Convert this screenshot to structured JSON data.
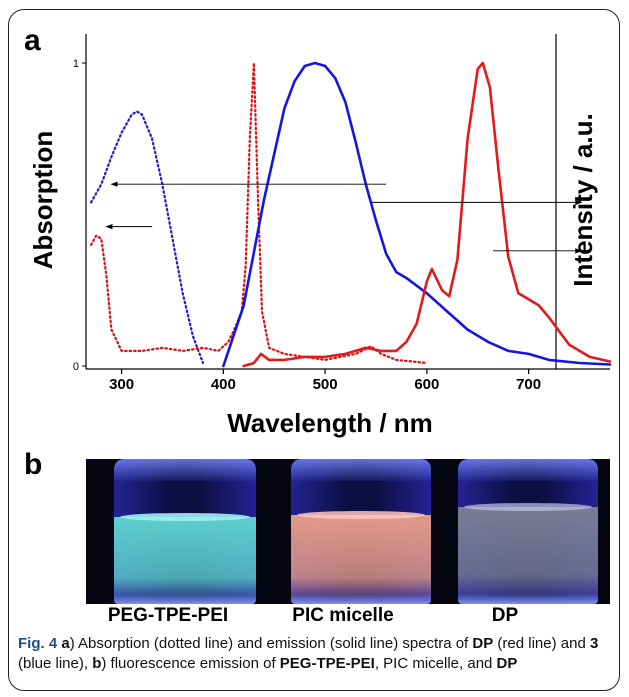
{
  "figure": {
    "panel_a_label": "a",
    "panel_b_label": "b",
    "caption": {
      "fig_no": "Fig. 4",
      "p1": " a",
      "p2": ") Absorption (dotted line) and emission (solid line) spectra of ",
      "p3": "DP",
      "p4": " (red line) and ",
      "p5": "3",
      "p6": " (blue line), ",
      "p7": "b",
      "p8": ") fluorescence emission of ",
      "p9": "PEG-TPE-PEI",
      "p10": ", PIC micelle, and ",
      "p11": "DP"
    }
  },
  "chart_data": {
    "type": "line",
    "title": "",
    "xlabel": "Wavelength / nm",
    "ylabel": "Absorption",
    "ylabel_right": "Intensity / a.u.",
    "xlim": [
      265,
      780
    ],
    "ylim": [
      0,
      1.1
    ],
    "xticks": [
      300,
      400,
      500,
      600,
      700
    ],
    "xtick_labels": [
      "300",
      "400",
      "500",
      "600",
      "700"
    ],
    "yticks": [
      0,
      1
    ],
    "ytick_labels": [
      "0",
      "1"
    ],
    "grid": false,
    "legend": "none",
    "series": [
      {
        "style": "dotted",
        "color": "#1f1fd0",
        "x": [
          270,
          280,
          290,
          300,
          310,
          315,
          320,
          330,
          340,
          350,
          360,
          370,
          380
        ],
        "y": [
          0.54,
          0.6,
          0.69,
          0.77,
          0.83,
          0.84,
          0.83,
          0.75,
          0.6,
          0.42,
          0.24,
          0.1,
          0.01
        ]
      },
      {
        "style": "dotted",
        "color": "#e01010",
        "x": [
          270,
          275,
          280,
          285,
          290,
          300,
          320,
          340,
          360,
          380,
          395,
          405,
          412,
          418,
          422,
          426,
          430,
          434,
          438,
          445,
          460,
          500,
          530,
          545,
          555,
          570,
          600
        ],
        "y": [
          0.4,
          0.43,
          0.42,
          0.3,
          0.12,
          0.05,
          0.05,
          0.06,
          0.05,
          0.06,
          0.05,
          0.08,
          0.13,
          0.18,
          0.33,
          0.75,
          1.0,
          0.55,
          0.18,
          0.06,
          0.04,
          0.02,
          0.04,
          0.065,
          0.04,
          0.02,
          0.01
        ]
      },
      {
        "style": "solid",
        "color": "#1515e0",
        "x": [
          400,
          420,
          440,
          460,
          470,
          480,
          490,
          500,
          510,
          520,
          530,
          540,
          550,
          560,
          570,
          580,
          600,
          620,
          640,
          660,
          680,
          700,
          720,
          750,
          780
        ],
        "y": [
          0.0,
          0.2,
          0.55,
          0.85,
          0.94,
          0.99,
          1.0,
          0.99,
          0.95,
          0.87,
          0.74,
          0.6,
          0.48,
          0.37,
          0.31,
          0.29,
          0.24,
          0.18,
          0.12,
          0.08,
          0.05,
          0.04,
          0.02,
          0.01,
          0.005
        ]
      },
      {
        "style": "solid",
        "color": "#e21a1a",
        "x": [
          420,
          430,
          437,
          445,
          460,
          480,
          500,
          520,
          540,
          555,
          570,
          580,
          590,
          600,
          605,
          615,
          622,
          630,
          640,
          650,
          655,
          662,
          670,
          680,
          690,
          700,
          710,
          720,
          740,
          760,
          780
        ],
        "y": [
          0.0,
          0.01,
          0.04,
          0.02,
          0.02,
          0.03,
          0.03,
          0.04,
          0.06,
          0.05,
          0.05,
          0.08,
          0.14,
          0.28,
          0.32,
          0.25,
          0.23,
          0.35,
          0.75,
          0.98,
          1.0,
          0.92,
          0.66,
          0.36,
          0.24,
          0.22,
          0.2,
          0.16,
          0.07,
          0.03,
          0.015
        ]
      }
    ],
    "annotations": [
      {
        "type": "arrow",
        "x_from": 560,
        "x_to": 290,
        "y": 0.6
      },
      {
        "type": "arrow",
        "x_from": 330,
        "x_to": 285,
        "y": 0.46
      },
      {
        "type": "arrow",
        "x_from": 545,
        "x_to": 752,
        "y": 0.54
      },
      {
        "type": "arrow",
        "x_from": 665,
        "x_to": 752,
        "y": 0.38
      }
    ]
  },
  "photo": {
    "samples": [
      {
        "label": "PEG-TPE-PEI",
        "liquid_color": "#5ecfcf"
      },
      {
        "label": "PIC micelle",
        "liquid_color": "#e39a8a"
      },
      {
        "label": "DP",
        "liquid_color": "#7a7c96"
      }
    ]
  }
}
